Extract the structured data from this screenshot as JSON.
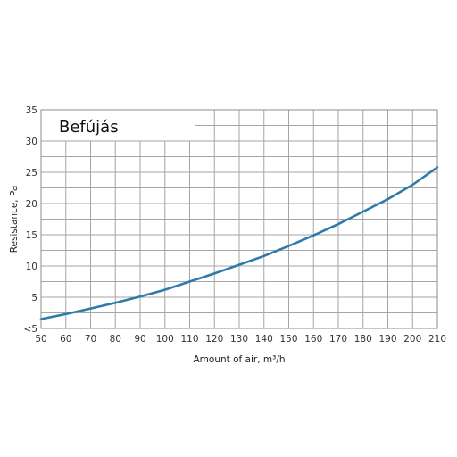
{
  "chart_data": {
    "type": "line",
    "title": "Befújás",
    "xlabel": "Amount of air, m³/h",
    "ylabel": "Resistance, Pa",
    "xlim": [
      50,
      210
    ],
    "ylim": [
      0,
      35
    ],
    "x_ticks": [
      "50",
      "60",
      "70",
      "80",
      "90",
      "100",
      "110",
      "120",
      "130",
      "140",
      "150",
      "160",
      "170",
      "180",
      "190",
      "200",
      "210"
    ],
    "y_ticks": [
      {
        "value": 0,
        "label": "<5"
      },
      {
        "value": 5,
        "label": "5"
      },
      {
        "value": 10,
        "label": "10"
      },
      {
        "value": 15,
        "label": "15"
      },
      {
        "value": 20,
        "label": "20"
      },
      {
        "value": 25,
        "label": "25"
      },
      {
        "value": 30,
        "label": "30"
      },
      {
        "value": 35,
        "label": "35"
      }
    ],
    "x_grid_step": 10,
    "y_grid_step": 2.5,
    "grid": true,
    "series": [
      {
        "color": "#2e7bab",
        "x": [
          50,
          60,
          70,
          80,
          90,
          100,
          110,
          120,
          130,
          140,
          150,
          160,
          170,
          180,
          190,
          200,
          210
        ],
        "y": [
          1.5,
          2.3,
          3.2,
          4.1,
          5.1,
          6.2,
          7.5,
          8.8,
          10.2,
          11.6,
          13.2,
          14.9,
          16.7,
          18.7,
          20.7,
          23.0,
          25.8
        ]
      }
    ]
  }
}
